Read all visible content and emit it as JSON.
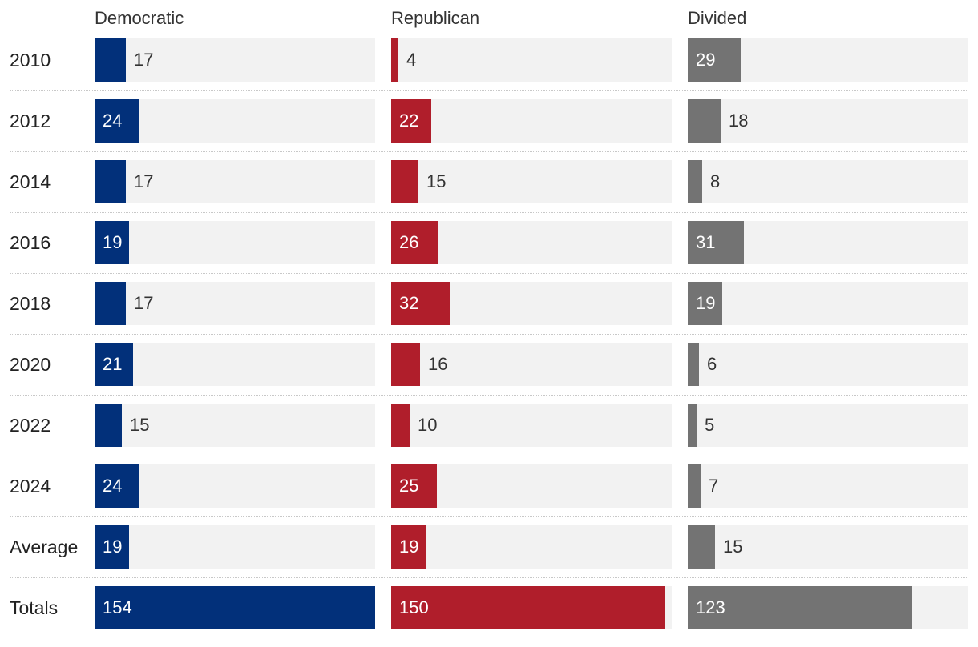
{
  "chart_data": {
    "type": "bar",
    "columns": [
      {
        "key": "dem",
        "label": "Democratic",
        "color": "#02307a"
      },
      {
        "key": "rep",
        "label": "Republican",
        "color": "#b01e2b"
      },
      {
        "key": "div",
        "label": "Divided",
        "color": "#737373"
      }
    ],
    "rows": [
      {
        "label": "2010",
        "dem": 17,
        "rep": 4,
        "div": 29
      },
      {
        "label": "2012",
        "dem": 24,
        "rep": 22,
        "div": 18
      },
      {
        "label": "2014",
        "dem": 17,
        "rep": 15,
        "div": 8
      },
      {
        "label": "2016",
        "dem": 19,
        "rep": 26,
        "div": 31
      },
      {
        "label": "2018",
        "dem": 17,
        "rep": 32,
        "div": 19
      },
      {
        "label": "2020",
        "dem": 21,
        "rep": 16,
        "div": 6
      },
      {
        "label": "2022",
        "dem": 15,
        "rep": 10,
        "div": 5
      },
      {
        "label": "2024",
        "dem": 24,
        "rep": 25,
        "div": 7
      },
      {
        "label": "Average",
        "dem": 19,
        "rep": 19,
        "div": 15
      }
    ],
    "totals": {
      "label": "Totals",
      "dem": 154,
      "rep": 150,
      "div": 123
    },
    "row_max": 154,
    "totals_max": 154,
    "track_color": "#f2f2f2"
  }
}
